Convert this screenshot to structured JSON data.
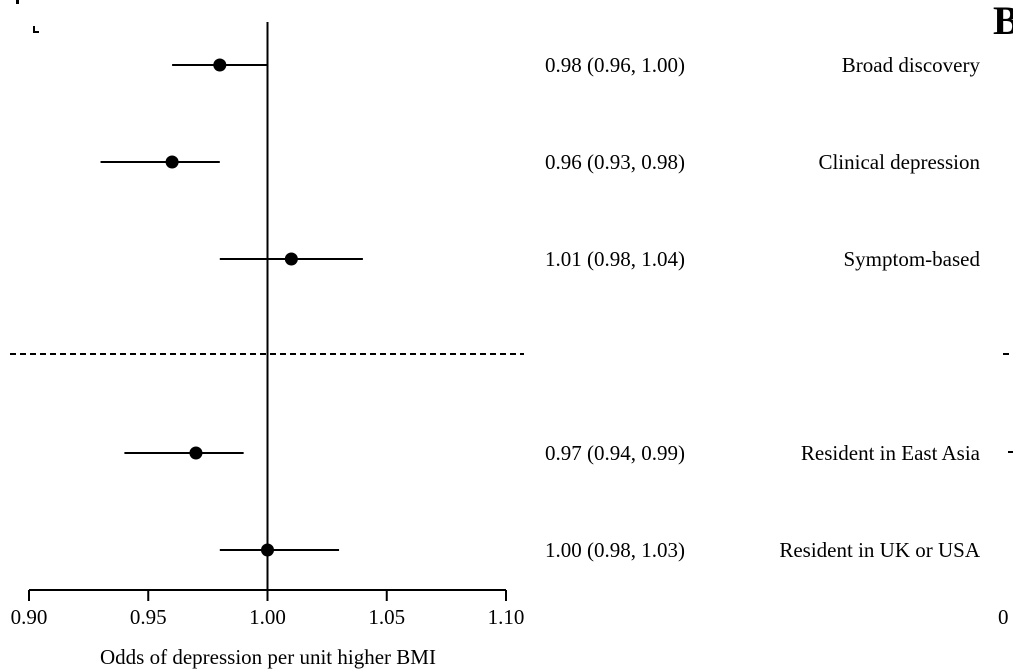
{
  "chart_data": {
    "type": "forest",
    "xlabel": "Odds of depression per unit higher BMI",
    "xlim": [
      0.9,
      1.1
    ],
    "x_ticks": [
      0.9,
      0.95,
      1.0,
      1.05,
      1.1
    ],
    "x_tick_labels": [
      "0.90",
      "0.95",
      "1.00",
      "1.05",
      "1.10"
    ],
    "reference_line": 1.0,
    "rows": [
      {
        "label": "Broad discovery",
        "estimate": 0.98,
        "lower": 0.96,
        "upper": 1.0,
        "text": "0.98 (0.96, 1.00)",
        "slot": 0
      },
      {
        "label": "Clinical depression",
        "estimate": 0.96,
        "lower": 0.93,
        "upper": 0.98,
        "text": "0.96 (0.93, 0.98)",
        "slot": 1
      },
      {
        "label": "Symptom-based",
        "estimate": 1.01,
        "lower": 0.98,
        "upper": 1.04,
        "text": "1.01 (0.98, 1.04)",
        "slot": 2
      },
      {
        "label": "Resident in East Asia",
        "estimate": 0.97,
        "lower": 0.94,
        "upper": 0.99,
        "text": "0.97 (0.94, 0.99)",
        "slot": 4
      },
      {
        "label": "Resident in UK or USA",
        "estimate": 1.0,
        "lower": 0.98,
        "upper": 1.03,
        "text": "1.00 (0.98, 1.03)",
        "slot": 5
      }
    ],
    "separator_after_slot": 2,
    "panel_letter_right": "B",
    "cutoff_tick_label_right": "0"
  }
}
